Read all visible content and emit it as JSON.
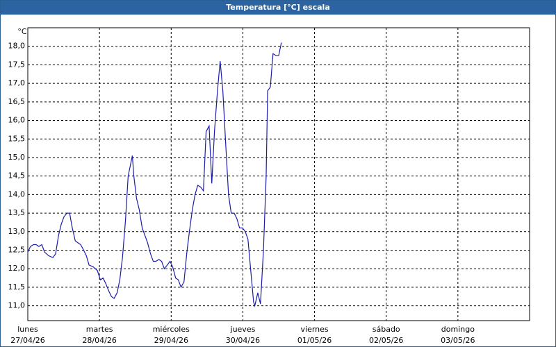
{
  "chart_data": {
    "type": "line",
    "title": "Temperatura [°C] escala",
    "y_unit": "°C",
    "color": "#1c1ca8",
    "grid": true,
    "xlim": [
      0,
      168
    ],
    "ylim": [
      10.6,
      18.5
    ],
    "xticks": [
      {
        "value": 0,
        "label": "lunes",
        "date": "27/04/26"
      },
      {
        "value": 24,
        "label": "martes",
        "date": "28/04/26"
      },
      {
        "value": 48,
        "label": "miércoles",
        "date": "29/04/26"
      },
      {
        "value": 72,
        "label": "jueves",
        "date": "30/04/26"
      },
      {
        "value": 96,
        "label": "viernes",
        "date": "01/05/26"
      },
      {
        "value": 120,
        "label": "sábado",
        "date": "02/05/26"
      },
      {
        "value": 144,
        "label": "domingo",
        "date": "03/05/26"
      }
    ],
    "yticks": [
      {
        "value": 11,
        "label": "11,0"
      },
      {
        "value": 11.5,
        "label": "11,5"
      },
      {
        "value": 12,
        "label": "12,0"
      },
      {
        "value": 12.5,
        "label": "12,5"
      },
      {
        "value": 13,
        "label": "13,0"
      },
      {
        "value": 13.5,
        "label": "13,5"
      },
      {
        "value": 14,
        "label": "14,0"
      },
      {
        "value": 14.5,
        "label": "14,5"
      },
      {
        "value": 15,
        "label": "15,0"
      },
      {
        "value": 15.5,
        "label": "15,5"
      },
      {
        "value": 16,
        "label": "16,0"
      },
      {
        "value": 16.5,
        "label": "16,5"
      },
      {
        "value": 17,
        "label": "17,0"
      },
      {
        "value": 17.5,
        "label": "17,5"
      },
      {
        "value": 18,
        "label": "18,0"
      }
    ],
    "x": [
      0,
      0.9,
      1.9,
      2.8,
      3.7,
      4.7,
      5.6,
      7,
      8.4,
      9.3,
      10.3,
      11.2,
      12.1,
      13.1,
      14,
      14.9,
      15.9,
      16.8,
      17.7,
      18.7,
      19.6,
      20.5,
      21.9,
      23.3,
      24.3,
      25.2,
      26.1,
      27.1,
      28,
      28.9,
      29.9,
      30.8,
      31.7,
      32.7,
      33.6,
      35,
      35.5,
      36.4,
      37.3,
      38.3,
      39.2,
      40.1,
      41.1,
      42,
      42.9,
      43.9,
      44.8,
      45.7,
      46.7,
      47.6,
      48.5,
      49.5,
      50.4,
      51.3,
      52.3,
      53.2,
      54.1,
      55.1,
      56,
      56.9,
      57.9,
      58.8,
      59.7,
      60.7,
      61.6,
      62.5,
      63.5,
      64.4,
      65.3,
      66.3,
      67.2,
      68.1,
      69.1,
      70,
      70.9,
      71.9,
      72.8,
      73.7,
      74.7,
      75.6,
      76,
      77,
      77.9,
      78.9,
      79.8,
      80.3,
      81.2,
      82.1,
      83.1,
      84,
      84.9
    ],
    "values": [
      12.45,
      12.6,
      12.65,
      12.65,
      12.6,
      12.65,
      12.45,
      12.35,
      12.3,
      12.4,
      12.9,
      13.2,
      13.4,
      13.5,
      13.5,
      13.1,
      12.75,
      12.7,
      12.65,
      12.5,
      12.35,
      12.1,
      12.05,
      11.95,
      11.7,
      11.75,
      11.6,
      11.4,
      11.25,
      11.2,
      11.35,
      11.7,
      12.3,
      13.3,
      14.5,
      15.05,
      14.5,
      13.9,
      13.6,
      13.1,
      12.9,
      12.7,
      12.4,
      12.2,
      12.2,
      12.25,
      12.2,
      12.0,
      12.1,
      12.2,
      12.05,
      11.75,
      11.7,
      11.5,
      11.65,
      12.4,
      13.0,
      13.6,
      14.0,
      14.25,
      14.2,
      14.1,
      15.7,
      15.85,
      14.3,
      15.7,
      16.8,
      17.6,
      16.8,
      15.3,
      14.0,
      13.5,
      13.5,
      13.35,
      13.1,
      13.1,
      13.0,
      12.8,
      11.9,
      11.1,
      11.0,
      11.35,
      11.05,
      12.5,
      14.5,
      16.8,
      16.9,
      17.8,
      17.75,
      17.75,
      18.1
    ]
  }
}
